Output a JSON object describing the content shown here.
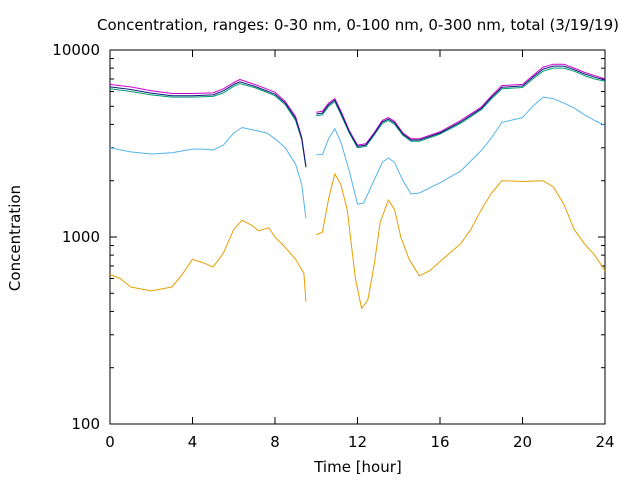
{
  "chart_data": {
    "type": "line",
    "title": "Concentration, ranges: 0-30 nm, 0-100 nm, 0-300 nm, total (3/19/19)",
    "xlabel": "Time [hour]",
    "ylabel": "Concentration",
    "xlim": [
      0,
      24
    ],
    "ylim": [
      100,
      10000
    ],
    "yscale": "log",
    "grid": false,
    "legend": "none",
    "x_ticks": [
      0,
      4,
      8,
      12,
      16,
      20,
      24
    ],
    "x_tick_labels": [
      "0",
      "4",
      "8",
      "12",
      "16",
      "20",
      "24"
    ],
    "y_ticks": [
      100,
      1000,
      10000
    ],
    "y_tick_labels": [
      "100",
      "1000",
      "10000"
    ],
    "y_minor_ticks": [
      200,
      300,
      400,
      500,
      600,
      700,
      800,
      900,
      2000,
      3000,
      4000,
      5000,
      6000,
      7000,
      8000,
      9000
    ],
    "series": [
      {
        "color": "#e69f00",
        "segments": [
          [
            [
              0,
              630
            ],
            [
              0.5,
              600
            ],
            [
              1,
              540
            ],
            [
              2,
              515
            ],
            [
              3,
              540
            ],
            [
              3.5,
              630
            ],
            [
              4,
              760
            ],
            [
              4.5,
              730
            ],
            [
              5,
              690
            ],
            [
              5.5,
              820
            ],
            [
              6,
              1100
            ],
            [
              6.4,
              1230
            ],
            [
              6.9,
              1150
            ],
            [
              7.2,
              1080
            ],
            [
              7.7,
              1120
            ],
            [
              8,
              1000
            ],
            [
              8.5,
              880
            ],
            [
              9,
              760
            ],
            [
              9.4,
              640
            ],
            [
              9.5,
              450
            ]
          ],
          [
            [
              10,
              1030
            ],
            [
              10.3,
              1060
            ],
            [
              10.6,
              1600
            ],
            [
              10.9,
              2180
            ],
            [
              11.2,
              1900
            ],
            [
              11.5,
              1400
            ],
            [
              11.9,
              600
            ],
            [
              12.2,
              415
            ],
            [
              12.5,
              460
            ],
            [
              12.8,
              700
            ],
            [
              13.1,
              1200
            ],
            [
              13.5,
              1580
            ],
            [
              13.8,
              1400
            ],
            [
              14.1,
              1000
            ],
            [
              14.5,
              760
            ],
            [
              15,
              620
            ],
            [
              15.5,
              660
            ],
            [
              16,
              740
            ],
            [
              17,
              920
            ],
            [
              17.5,
              1100
            ],
            [
              18,
              1400
            ],
            [
              18.5,
              1720
            ],
            [
              19,
              2000
            ],
            [
              20,
              1980
            ],
            [
              21,
              2000
            ],
            [
              21.5,
              1850
            ],
            [
              22,
              1500
            ],
            [
              22.5,
              1100
            ],
            [
              23,
              920
            ],
            [
              23.5,
              800
            ],
            [
              24,
              660
            ]
          ]
        ]
      },
      {
        "color": "#56b4e9",
        "segments": [
          [
            [
              0,
              3000
            ],
            [
              1,
              2850
            ],
            [
              2,
              2780
            ],
            [
              3,
              2820
            ],
            [
              4,
              2950
            ],
            [
              4.5,
              2950
            ],
            [
              5,
              2920
            ],
            [
              5.5,
              3100
            ],
            [
              6,
              3600
            ],
            [
              6.4,
              3850
            ],
            [
              7,
              3720
            ],
            [
              7.6,
              3600
            ],
            [
              8,
              3350
            ],
            [
              8.5,
              3000
            ],
            [
              9,
              2450
            ],
            [
              9.3,
              1900
            ],
            [
              9.5,
              1260
            ]
          ],
          [
            [
              10,
              2750
            ],
            [
              10.3,
              2760
            ],
            [
              10.6,
              3350
            ],
            [
              10.9,
              3800
            ],
            [
              11.2,
              3200
            ],
            [
              11.6,
              2250
            ],
            [
              12,
              1500
            ],
            [
              12.3,
              1520
            ],
            [
              12.7,
              1900
            ],
            [
              13.2,
              2500
            ],
            [
              13.5,
              2650
            ],
            [
              13.8,
              2500
            ],
            [
              14.2,
              2000
            ],
            [
              14.6,
              1700
            ],
            [
              15,
              1720
            ],
            [
              16,
              1950
            ],
            [
              17,
              2250
            ],
            [
              18,
              2900
            ],
            [
              18.5,
              3400
            ],
            [
              19,
              4100
            ],
            [
              20,
              4350
            ],
            [
              20.5,
              5000
            ],
            [
              21,
              5600
            ],
            [
              21.5,
              5500
            ],
            [
              22,
              5200
            ],
            [
              22.5,
              4900
            ],
            [
              23,
              4500
            ],
            [
              23.5,
              4200
            ],
            [
              24,
              3950
            ]
          ]
        ]
      },
      {
        "color": "#009e73",
        "segments": [
          [
            [
              0,
              6200
            ],
            [
              1,
              6000
            ],
            [
              2,
              5750
            ],
            [
              3,
              5600
            ],
            [
              4,
              5600
            ],
            [
              5,
              5650
            ],
            [
              5.5,
              5900
            ],
            [
              6,
              6400
            ],
            [
              6.3,
              6600
            ],
            [
              7,
              6300
            ],
            [
              7.5,
              6000
            ],
            [
              8,
              5700
            ],
            [
              8.5,
              5100
            ],
            [
              9,
              4200
            ],
            [
              9.3,
              3300
            ],
            [
              9.5,
              2350
            ]
          ],
          [
            [
              10,
              4450
            ],
            [
              10.3,
              4500
            ],
            [
              10.6,
              5000
            ],
            [
              10.9,
              5300
            ],
            [
              11.2,
              4500
            ],
            [
              11.6,
              3600
            ],
            [
              12,
              3000
            ],
            [
              12.4,
              3050
            ],
            [
              12.8,
              3500
            ],
            [
              13.2,
              4050
            ],
            [
              13.5,
              4200
            ],
            [
              13.8,
              4000
            ],
            [
              14.2,
              3500
            ],
            [
              14.6,
              3250
            ],
            [
              15,
              3250
            ],
            [
              16,
              3550
            ],
            [
              17,
              4050
            ],
            [
              18,
              4800
            ],
            [
              18.5,
              5500
            ],
            [
              19,
              6200
            ],
            [
              20,
              6300
            ],
            [
              20.5,
              7000
            ],
            [
              21,
              7700
            ],
            [
              21.5,
              8000
            ],
            [
              22,
              8000
            ],
            [
              22.5,
              7700
            ],
            [
              23,
              7300
            ],
            [
              23.5,
              7000
            ],
            [
              24,
              6800
            ]
          ]
        ]
      },
      {
        "color": "#cc00cc",
        "segments": [
          [
            [
              0,
              6550
            ],
            [
              1,
              6350
            ],
            [
              2,
              6050
            ],
            [
              3,
              5850
            ],
            [
              4,
              5850
            ],
            [
              5,
              5900
            ],
            [
              5.5,
              6200
            ],
            [
              6,
              6700
            ],
            [
              6.3,
              6950
            ],
            [
              7,
              6550
            ],
            [
              7.5,
              6250
            ],
            [
              8,
              5950
            ],
            [
              8.5,
              5300
            ],
            [
              9,
              4400
            ],
            [
              9.3,
              3400
            ],
            [
              9.5,
              2400
            ]
          ],
          [
            [
              10,
              4650
            ],
            [
              10.3,
              4700
            ],
            [
              10.6,
              5200
            ],
            [
              10.9,
              5500
            ],
            [
              11.2,
              4700
            ],
            [
              11.6,
              3700
            ],
            [
              12,
              3100
            ],
            [
              12.4,
              3150
            ],
            [
              12.8,
              3600
            ],
            [
              13.2,
              4200
            ],
            [
              13.5,
              4350
            ],
            [
              13.8,
              4150
            ],
            [
              14.2,
              3600
            ],
            [
              14.6,
              3350
            ],
            [
              15,
              3350
            ],
            [
              16,
              3650
            ],
            [
              17,
              4200
            ],
            [
              18,
              4950
            ],
            [
              18.5,
              5700
            ],
            [
              19,
              6450
            ],
            [
              20,
              6550
            ],
            [
              20.5,
              7300
            ],
            [
              21,
              8100
            ],
            [
              21.5,
              8400
            ],
            [
              22,
              8400
            ],
            [
              22.5,
              8000
            ],
            [
              23,
              7600
            ],
            [
              23.5,
              7300
            ],
            [
              24,
              7000
            ]
          ]
        ]
      },
      {
        "color": "#0a1f7a",
        "segments": [
          [
            [
              0,
              6350
            ],
            [
              1,
              6150
            ],
            [
              2,
              5880
            ],
            [
              3,
              5700
            ],
            [
              4,
              5700
            ],
            [
              5,
              5750
            ],
            [
              5.5,
              6050
            ],
            [
              6,
              6550
            ],
            [
              6.3,
              6750
            ],
            [
              7,
              6400
            ],
            [
              7.5,
              6100
            ],
            [
              8,
              5800
            ],
            [
              8.5,
              5200
            ],
            [
              9,
              4300
            ],
            [
              9.3,
              3350
            ],
            [
              9.5,
              2380
            ]
          ],
          [
            [
              10,
              4550
            ],
            [
              10.3,
              4600
            ],
            [
              10.6,
              5100
            ],
            [
              10.9,
              5400
            ],
            [
              11.2,
              4600
            ],
            [
              11.6,
              3650
            ],
            [
              12,
              3050
            ],
            [
              12.4,
              3100
            ],
            [
              12.8,
              3550
            ],
            [
              13.2,
              4120
            ],
            [
              13.5,
              4270
            ],
            [
              13.8,
              4080
            ],
            [
              14.2,
              3550
            ],
            [
              14.6,
              3300
            ],
            [
              15,
              3300
            ],
            [
              16,
              3600
            ],
            [
              17,
              4120
            ],
            [
              18,
              4870
            ],
            [
              18.5,
              5600
            ],
            [
              19,
              6320
            ],
            [
              20,
              6420
            ],
            [
              20.5,
              7150
            ],
            [
              21,
              7900
            ],
            [
              21.5,
              8200
            ],
            [
              22,
              8200
            ],
            [
              22.5,
              7850
            ],
            [
              23,
              7450
            ],
            [
              23.5,
              7150
            ],
            [
              24,
              6900
            ]
          ]
        ]
      }
    ]
  }
}
